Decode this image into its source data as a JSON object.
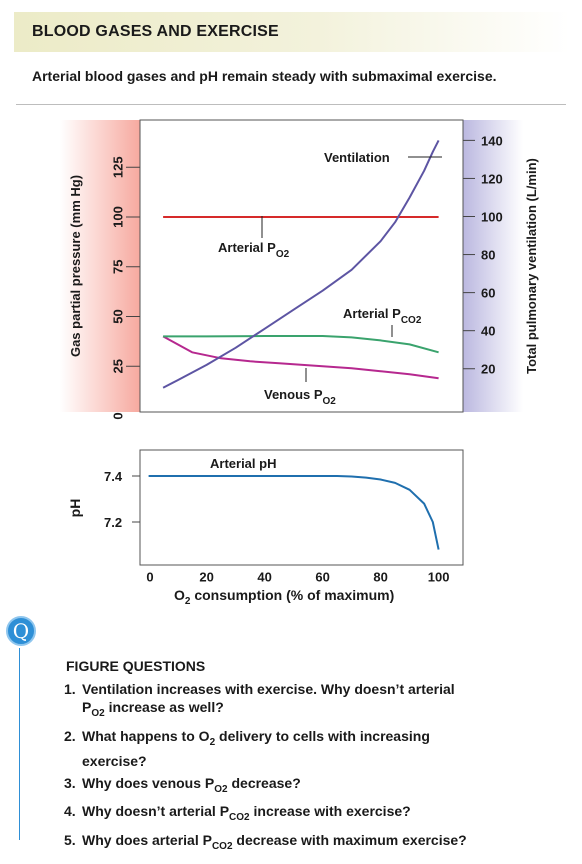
{
  "header": {
    "title": "BLOOD GASES AND EXERCISE"
  },
  "subtitle": "Arterial blood gases and pH remain steady with submaximal exercise.",
  "chart_data": [
    {
      "type": "line",
      "title": "",
      "xlabel": "O2 consumption (% of maximum)",
      "ylabel": "Gas partial pressure (mm Hg)",
      "y2label": "Total pulmonary ventilation (L/min)",
      "xlim": [
        0,
        105
      ],
      "ylim": [
        0,
        140
      ],
      "y2lim": [
        0,
        145
      ],
      "yticks": [
        0,
        25,
        50,
        75,
        100,
        125
      ],
      "y2ticks": [
        20,
        40,
        60,
        80,
        100,
        120,
        140
      ],
      "series": [
        {
          "name": "Arterial PO2",
          "color": "#d62a2a",
          "axis": "left",
          "x": [
            5,
            100
          ],
          "y": [
            100,
            100
          ]
        },
        {
          "name": "Venous PO2",
          "color": "#b6288f",
          "axis": "left",
          "x": [
            5,
            15,
            25,
            35,
            45,
            60,
            70,
            80,
            90,
            100
          ],
          "y": [
            40,
            32,
            29,
            27.5,
            26.5,
            25,
            24,
            22.5,
            21,
            19
          ]
        },
        {
          "name": "Arterial PCO2",
          "color": "#3aa36d",
          "axis": "left",
          "x": [
            5,
            20,
            40,
            60,
            70,
            80,
            90,
            100
          ],
          "y": [
            40,
            40,
            40.2,
            40.2,
            39.5,
            38,
            36,
            32
          ]
        },
        {
          "name": "Ventilation",
          "color": "#5d55a3",
          "axis": "right",
          "x": [
            5,
            10,
            20,
            30,
            40,
            50,
            60,
            70,
            80,
            85,
            90,
            95,
            98,
            100
          ],
          "y": [
            10,
            14,
            22,
            31,
            41,
            51,
            61,
            72,
            87,
            97,
            110,
            124,
            134,
            140
          ]
        }
      ],
      "labels": {
        "ventilation": "Ventilation",
        "arterial_po2_main": "Arterial P",
        "arterial_po2_sub": "O2",
        "arterial_pco2_main": "Arterial P",
        "arterial_pco2_sub": "CO2",
        "venous_po2_main": "Venous P",
        "venous_po2_sub": "O2"
      },
      "colors": {
        "left_band": "#f7a99f",
        "right_band": "#bbb8e0"
      }
    },
    {
      "type": "line",
      "title": "Arterial pH",
      "xlabel": "O2 consumption (% of maximum)",
      "ylabel": "pH",
      "xlim": [
        0,
        105
      ],
      "ylim": [
        7.05,
        7.5
      ],
      "yticks": [
        7.2,
        7.4
      ],
      "xticks": [
        0,
        20,
        40,
        60,
        80,
        100
      ],
      "series": [
        {
          "name": "Arterial pH",
          "color": "#1f6fae",
          "x": [
            0,
            10,
            20,
            30,
            40,
            50,
            60,
            65,
            70,
            75,
            80,
            85,
            90,
            95,
            98,
            100
          ],
          "y": [
            7.4,
            7.4,
            7.4,
            7.4,
            7.4,
            7.4,
            7.4,
            7.4,
            7.398,
            7.393,
            7.385,
            7.37,
            7.34,
            7.28,
            7.2,
            7.08
          ]
        }
      ]
    }
  ],
  "axis_text": {
    "xlabel_main": " consumption (% of maximum)",
    "xlabel_o": "O",
    "xlabel_sub": "2"
  },
  "questions": {
    "heading": "FIGURE QUESTIONS",
    "q1_num": "1.",
    "q1_a": "Ventilation increases with exercise. Why doesn’t arterial",
    "q1_b": "P",
    "q1_b_sub": "O2",
    "q1_c": " increase as well?",
    "q2_num": "2.",
    "q2_a": "What happens to O",
    "q2_a_sub": "2",
    "q2_b": " delivery to cells with increasing",
    "q2_c": "exercise?",
    "q3_num": "3.",
    "q3_a": "Why does venous P",
    "q3_sub": "O2",
    "q3_b": " decrease?",
    "q4_num": "4.",
    "q4_a": "Why doesn’t arterial P",
    "q4_sub": "CO2",
    "q4_b": " increase with exercise?",
    "q5_num": "5.",
    "q5_a": "Why does arterial P",
    "q5_sub": "CO2",
    "q5_b": " decrease with maximum exercise?"
  },
  "icons": {
    "q_badge": "Q"
  }
}
